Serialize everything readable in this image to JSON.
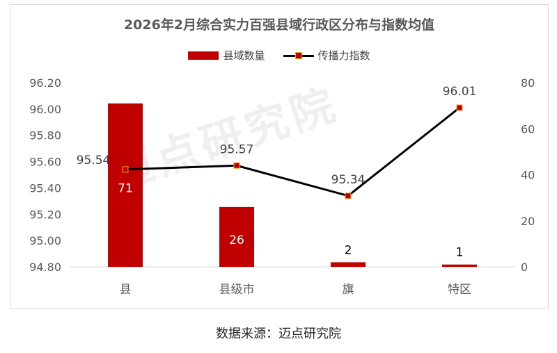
{
  "source_text": "数据来源：迈点研究院",
  "watermark_text": "迈点研究院",
  "chart_data": {
    "type": "bar",
    "title": "2026年2月综合实力百强县域行政区分布与指数均值",
    "categories": [
      "县",
      "县级市",
      "旗",
      "特区"
    ],
    "series": [
      {
        "name": "县域数量",
        "type": "bar",
        "axis": "right",
        "color": "#c00000",
        "values": [
          71,
          26,
          2,
          1
        ]
      },
      {
        "name": "传播力指数",
        "type": "line",
        "axis": "left",
        "color": "#000000",
        "marker_color": "#c00000",
        "values": [
          95.54,
          95.57,
          95.34,
          96.01
        ]
      }
    ],
    "y_left": {
      "ticks": [
        "94.80",
        "95.00",
        "95.20",
        "95.40",
        "95.60",
        "95.80",
        "96.00",
        "96.20"
      ],
      "ylim": [
        94.8,
        96.2
      ]
    },
    "y_right": {
      "ticks": [
        "0",
        "20",
        "40",
        "60",
        "80"
      ],
      "ylim": [
        0,
        80
      ]
    },
    "legend_position": "top"
  }
}
